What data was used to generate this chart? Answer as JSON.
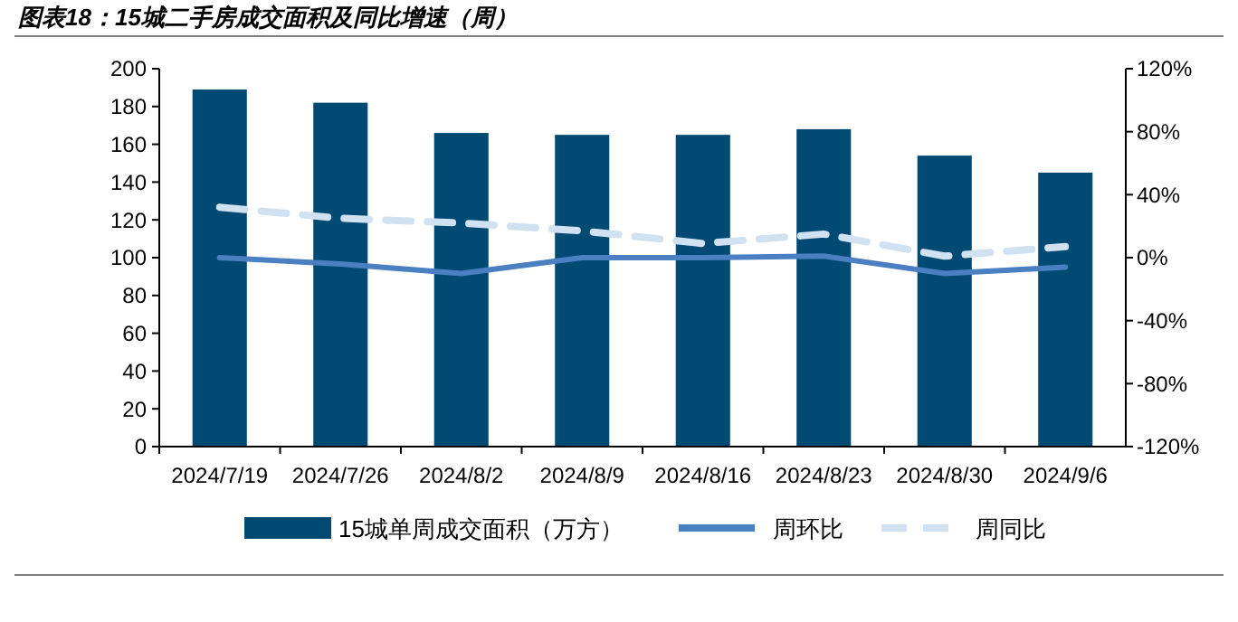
{
  "chart_data": {
    "type": "bar",
    "title": "图表18：15城二手房成交面积及同比增速（周）",
    "categories": [
      "2024/7/19",
      "2024/7/26",
      "2024/8/2",
      "2024/8/9",
      "2024/8/16",
      "2024/8/23",
      "2024/8/30",
      "2024/9/6"
    ],
    "series": [
      {
        "name": "15城单周成交面积（万方）",
        "color": "#004a73",
        "values": [
          189,
          182,
          166,
          165,
          165,
          168,
          154,
          145
        ]
      },
      {
        "name": "周环比",
        "type": "line",
        "axis": "y2",
        "color": "#4a7fc1",
        "line_style": "solid",
        "values": [
          0,
          -4,
          -10,
          0,
          0,
          1,
          -10,
          -6
        ]
      },
      {
        "name": "周同比",
        "type": "line",
        "axis": "y2",
        "color": "#d0e1f2",
        "line_style": "dashed",
        "values": [
          32,
          25,
          22,
          17,
          9,
          15,
          1,
          7
        ]
      }
    ],
    "ylim": [
      0,
      200
    ],
    "yticks": [
      0,
      20,
      40,
      60,
      80,
      100,
      120,
      140,
      160,
      180,
      200
    ],
    "y2lim": [
      -120,
      120
    ],
    "y2ticks": [
      {
        "value": -120,
        "label": "-120%"
      },
      {
        "value": -80,
        "label": "-80%"
      },
      {
        "value": -40,
        "label": "-40%"
      },
      {
        "value": 0,
        "label": "0%"
      },
      {
        "value": 40,
        "label": "40%"
      },
      {
        "value": 80,
        "label": "80%"
      },
      {
        "value": 120,
        "label": "120%"
      }
    ],
    "legend": "bottom",
    "grid": false
  }
}
